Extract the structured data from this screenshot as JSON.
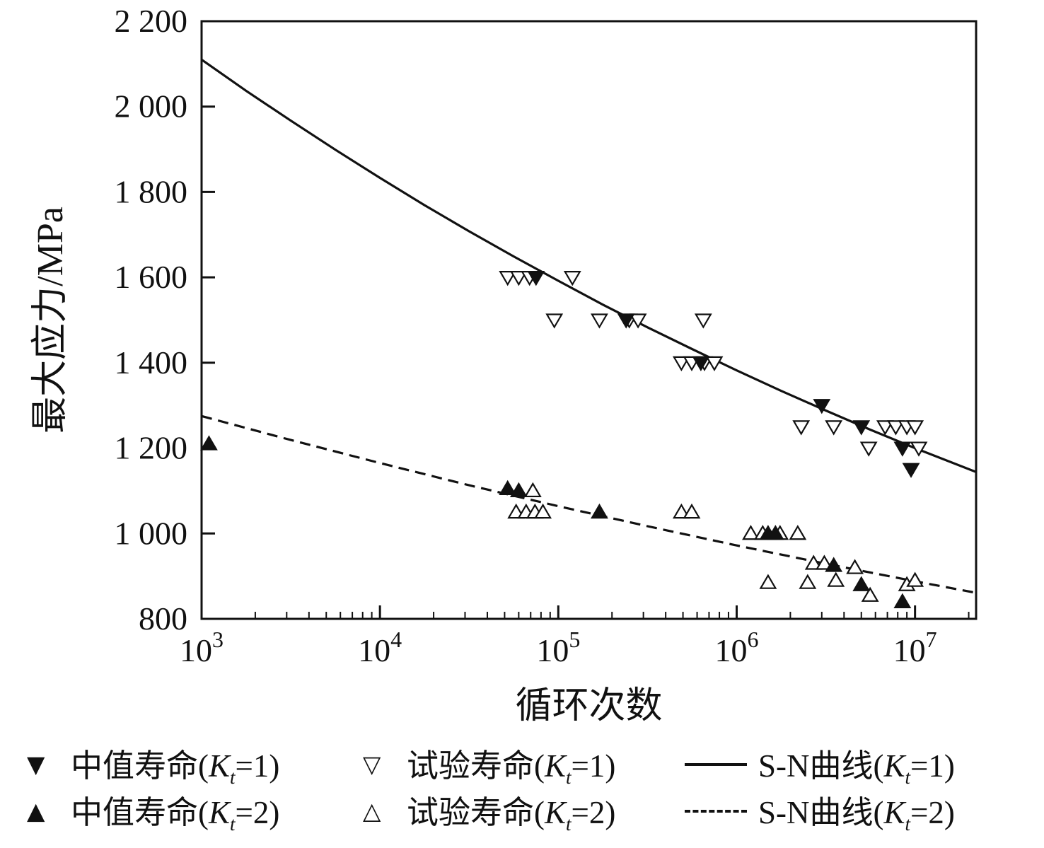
{
  "colors": {
    "axis": "#111111",
    "curve": "#111111",
    "background": "#ffffff"
  },
  "chart_data": {
    "type": "scatter",
    "title": "",
    "xlabel": "循环次数",
    "ylabel": "最大应力/MPa",
    "x_scale": "log",
    "x_range": [
      1000,
      22000000
    ],
    "y_range": [
      800,
      2200
    ],
    "grid": false,
    "x_ticks": [
      {
        "value": 1000,
        "base": "10",
        "exp": "3"
      },
      {
        "value": 10000,
        "base": "10",
        "exp": "4"
      },
      {
        "value": 100000,
        "base": "10",
        "exp": "5"
      },
      {
        "value": 1000000,
        "base": "10",
        "exp": "6"
      },
      {
        "value": 10000000,
        "base": "10",
        "exp": "7"
      }
    ],
    "y_ticks": [
      {
        "value": 800,
        "label": "800"
      },
      {
        "value": 1000,
        "label": "1 000"
      },
      {
        "value": 1200,
        "label": "1 200"
      },
      {
        "value": 1400,
        "label": "1 400"
      },
      {
        "value": 1600,
        "label": "1 600"
      },
      {
        "value": 1800,
        "label": "1 800"
      },
      {
        "value": 2000,
        "label": "2 000"
      },
      {
        "value": 2200,
        "label": "2 200"
      }
    ],
    "series": [
      {
        "name": "S-N曲线(Kt=1)",
        "kind": "line",
        "dash": "solid",
        "points": [
          [
            1000,
            2110
          ],
          [
            1778,
            2037
          ],
          [
            3162,
            1967
          ],
          [
            5623,
            1899
          ],
          [
            10000,
            1833
          ],
          [
            17780,
            1769
          ],
          [
            31620,
            1708
          ],
          [
            56230,
            1649
          ],
          [
            100000,
            1592
          ],
          [
            177800,
            1536
          ],
          [
            316200,
            1483
          ],
          [
            562300,
            1432
          ],
          [
            1000000,
            1382
          ],
          [
            1778000,
            1334
          ],
          [
            3162000,
            1288
          ],
          [
            5623000,
            1243
          ],
          [
            10000000,
            1200
          ],
          [
            17780000,
            1159
          ],
          [
            22000000,
            1144
          ]
        ]
      },
      {
        "name": "S-N曲线(Kt=2)",
        "kind": "line",
        "dash": "dashed",
        "points": [
          [
            1000,
            1275
          ],
          [
            3162,
            1219
          ],
          [
            10000,
            1165
          ],
          [
            31620,
            1113
          ],
          [
            100000,
            1064
          ],
          [
            316200,
            1017
          ],
          [
            1000000,
            972
          ],
          [
            3162000,
            929
          ],
          [
            10000000,
            888
          ],
          [
            22000000,
            861
          ]
        ]
      },
      {
        "name": "试验寿命(Kt=1)",
        "kind": "scatter",
        "marker": "triangle-down",
        "fill": "white",
        "points": [
          [
            52000,
            1600
          ],
          [
            60000,
            1600
          ],
          [
            69000,
            1600
          ],
          [
            120000,
            1600
          ],
          [
            95000,
            1500
          ],
          [
            170000,
            1500
          ],
          [
            250000,
            1500
          ],
          [
            280000,
            1500
          ],
          [
            650000,
            1500
          ],
          [
            490000,
            1400
          ],
          [
            560000,
            1400
          ],
          [
            660000,
            1400
          ],
          [
            750000,
            1400
          ],
          [
            2300000,
            1250
          ],
          [
            3500000,
            1250
          ],
          [
            6800000,
            1250
          ],
          [
            7800000,
            1250
          ],
          [
            9000000,
            1250
          ],
          [
            10000000,
            1250
          ],
          [
            5500000,
            1200
          ],
          [
            10500000,
            1200
          ]
        ]
      },
      {
        "name": "中值寿命(Kt=1)",
        "kind": "scatter",
        "marker": "triangle-down",
        "fill": "black",
        "points": [
          [
            75000,
            1600
          ],
          [
            240000,
            1500
          ],
          [
            630000,
            1400
          ],
          [
            3000000,
            1300
          ],
          [
            5000000,
            1250
          ],
          [
            8500000,
            1200
          ],
          [
            9500000,
            1150
          ]
        ]
      },
      {
        "name": "试验寿命(Kt=2)",
        "kind": "scatter",
        "marker": "triangle-up",
        "fill": "white",
        "points": [
          [
            72000,
            1100
          ],
          [
            58000,
            1050
          ],
          [
            66000,
            1050
          ],
          [
            74000,
            1050
          ],
          [
            82000,
            1050
          ],
          [
            490000,
            1050
          ],
          [
            560000,
            1050
          ],
          [
            1200000,
            1000
          ],
          [
            1400000,
            1000
          ],
          [
            1750000,
            1000
          ],
          [
            2200000,
            1000
          ],
          [
            1500000,
            885
          ],
          [
            2500000,
            885
          ],
          [
            3600000,
            890
          ],
          [
            2700000,
            930
          ],
          [
            3100000,
            930
          ],
          [
            4600000,
            920
          ],
          [
            5600000,
            855
          ],
          [
            9000000,
            880
          ],
          [
            10000000,
            890
          ]
        ]
      },
      {
        "name": "中值寿命(Kt=2)",
        "kind": "scatter",
        "marker": "triangle-up",
        "fill": "black",
        "points": [
          [
            1100,
            1210
          ],
          [
            52000,
            1105
          ],
          [
            60000,
            1100
          ],
          [
            170000,
            1050
          ],
          [
            1500000,
            1000
          ],
          [
            1650000,
            1000
          ],
          [
            3500000,
            925
          ],
          [
            5000000,
            880
          ],
          [
            8500000,
            840
          ]
        ]
      }
    ]
  },
  "legend": {
    "items": [
      {
        "marker": "▼",
        "before": "中值寿命(",
        "var": "K",
        "sub": "t",
        "after": "=1)"
      },
      {
        "marker": "▽",
        "before": "试验寿命(",
        "var": "K",
        "sub": "t",
        "after": "=1)"
      },
      {
        "line": "solid",
        "before": "S-N曲线(",
        "var": "K",
        "sub": "t",
        "after": "=1)"
      },
      {
        "marker": "▲",
        "before": "中值寿命(",
        "var": "K",
        "sub": "t",
        "after": "=2)"
      },
      {
        "marker": "△",
        "before": "试验寿命(",
        "var": "K",
        "sub": "t",
        "after": "=2)"
      },
      {
        "line": "dashed",
        "before": "S-N曲线(",
        "var": "K",
        "sub": "t",
        "after": "=2)"
      }
    ]
  }
}
